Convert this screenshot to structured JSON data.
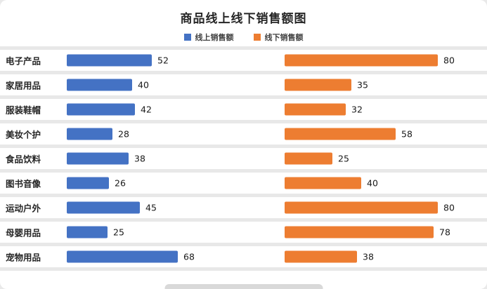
{
  "chart_data": {
    "type": "bar",
    "orientation": "horizontal",
    "title": "商品线上线下销售额图",
    "legend_position": "top",
    "grid": false,
    "xlim": [
      0,
      85
    ],
    "categories": [
      "电子产品",
      "家居用品",
      "服装鞋帽",
      "美妆个护",
      "食品饮料",
      "图书音像",
      "运动户外",
      "母婴用品",
      "宠物用品"
    ],
    "series": [
      {
        "name": "线上销售额",
        "color": "#4472C4",
        "values": [
          52,
          40,
          42,
          28,
          38,
          26,
          45,
          25,
          68
        ]
      },
      {
        "name": "线下销售额",
        "color": "#ED7D31",
        "values": [
          80,
          35,
          32,
          58,
          25,
          40,
          80,
          78,
          38
        ]
      }
    ]
  },
  "colors": {
    "online": "#4472C4",
    "offline": "#ED7D31",
    "row_separator": "#e8e8e8",
    "text": "#262626"
  }
}
